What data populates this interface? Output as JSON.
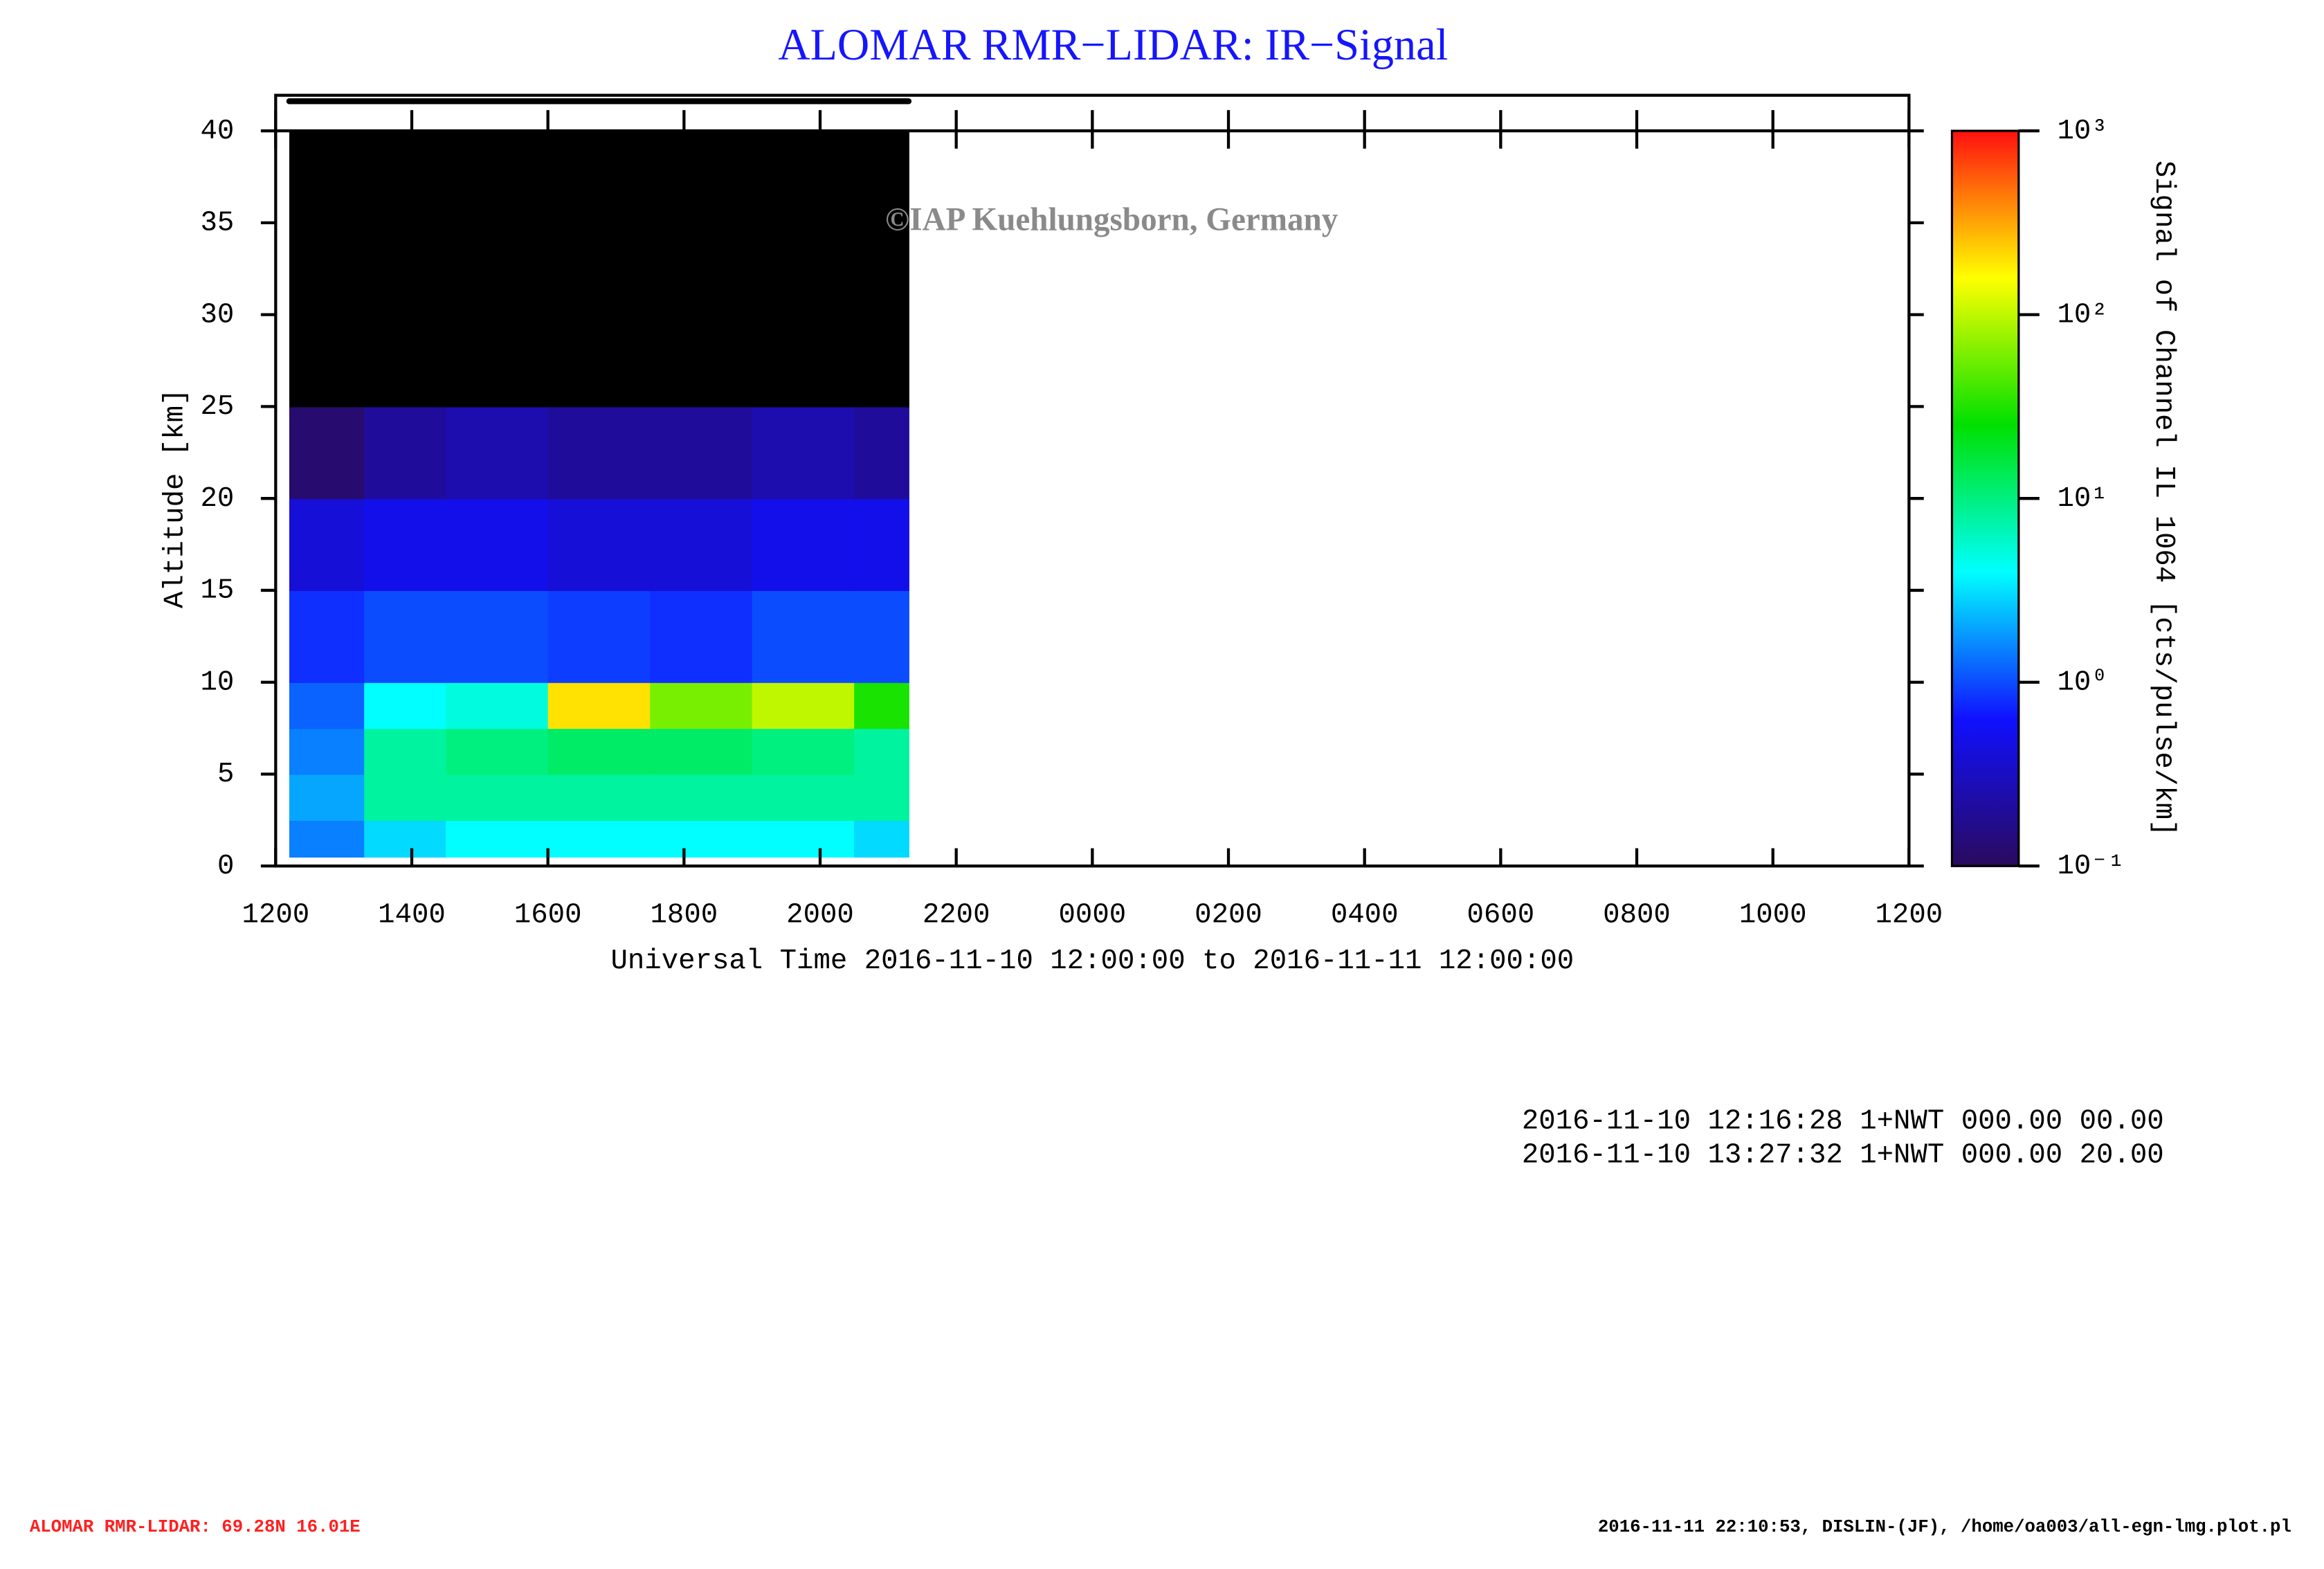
{
  "chart_data": {
    "type": "heatmap",
    "title": "ALOMAR RMR−LIDAR: IR−Signal",
    "watermark": "©IAP Kuehlungsborn, Germany",
    "xlabel": "Universal Time 2016-11-10 12:00:00 to 2016-11-11 12:00:00",
    "ylabel": "Altitude [km]",
    "colorbar_label": "Signal of Channel IL 1064 [cts/pulse/km]",
    "xlim": [
      0,
      24
    ],
    "xticks": [
      {
        "value": 0,
        "label": "1200"
      },
      {
        "value": 2,
        "label": "1400"
      },
      {
        "value": 4,
        "label": "1600"
      },
      {
        "value": 6,
        "label": "1800"
      },
      {
        "value": 8,
        "label": "2000"
      },
      {
        "value": 10,
        "label": "2200"
      },
      {
        "value": 12,
        "label": "0000"
      },
      {
        "value": 14,
        "label": "0200"
      },
      {
        "value": 16,
        "label": "0400"
      },
      {
        "value": 18,
        "label": "0600"
      },
      {
        "value": 20,
        "label": "0800"
      },
      {
        "value": 22,
        "label": "1000"
      },
      {
        "value": 24,
        "label": "1200"
      }
    ],
    "ylim": [
      0,
      40
    ],
    "yticks": [
      0,
      5,
      10,
      15,
      20,
      25,
      30,
      35,
      40
    ],
    "x_bins": [
      0.2,
      1.3,
      2.5,
      4,
      5.5,
      7,
      8.5,
      9.3
    ],
    "y_bins": [
      0.5,
      2.5,
      5,
      7.5,
      10,
      15,
      20,
      25,
      40
    ],
    "z": [
      [
        1.5,
        3,
        4,
        4,
        4,
        4,
        3
      ],
      [
        2,
        8,
        8,
        8,
        8,
        8,
        8
      ],
      [
        1.5,
        8,
        10,
        12,
        12,
        10,
        8
      ],
      [
        1.2,
        4,
        5,
        200,
        60,
        100,
        30
      ],
      [
        0.8,
        1,
        1,
        0.9,
        0.8,
        1,
        1
      ],
      [
        0.4,
        0.5,
        0.5,
        0.4,
        0.4,
        0.5,
        0.5
      ],
      [
        0.12,
        0.2,
        0.25,
        0.2,
        0.2,
        0.25,
        0.2
      ],
      [
        0.01,
        0.01,
        0.01,
        0.01,
        0.01,
        0.01,
        0.01
      ]
    ],
    "clim": [
      0.1,
      1000
    ],
    "log_color_scale": true,
    "colormap": [
      "#2a0a5e",
      "#1010ff",
      "#00ffff",
      "#00e000",
      "#ffff00",
      "#ff1010"
    ],
    "under_color": "#000000",
    "cticks": [
      {
        "value": 0.1,
        "label": "10⁻¹"
      },
      {
        "value": 1,
        "label": "10⁰"
      },
      {
        "value": 10,
        "label": "10¹"
      },
      {
        "value": 100,
        "label": "10²"
      },
      {
        "value": 1000,
        "label": "10³"
      }
    ],
    "log_lines": [
      "2016-11-10 12:16:28 1+NWT 000.00 00.00",
      "2016-11-10 13:27:32 1+NWT 000.00 20.00"
    ],
    "footer_left": "ALOMAR RMR-LIDAR: 69.28N 16.01E",
    "footer_right": "2016-11-11 22:10:53, DISLIN-(JF), /home/oa003/all-egn-lmg.plot.pl"
  }
}
